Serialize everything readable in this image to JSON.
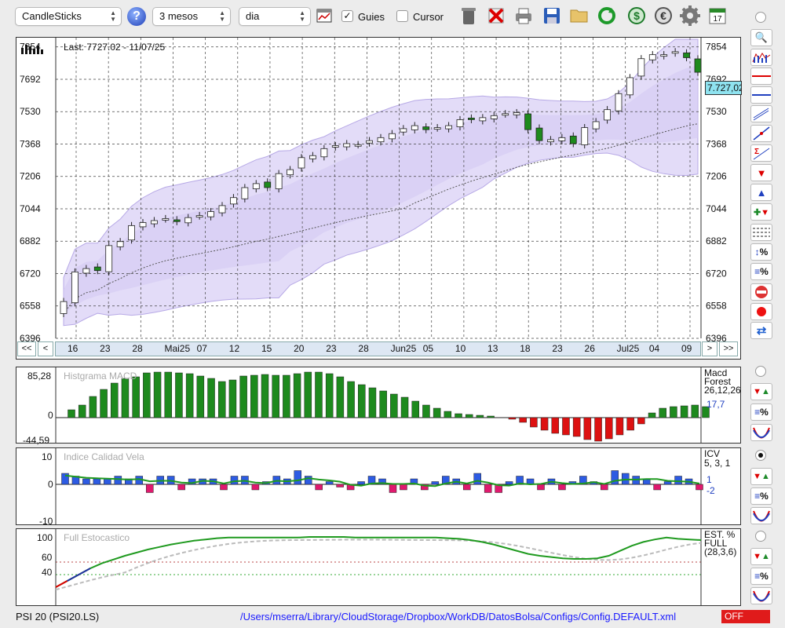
{
  "toolbar": {
    "chart_type": "CandleSticks",
    "period": "3 mesos",
    "interval": "dia",
    "guies_label": "Guies",
    "guies_checked": true,
    "cursor_label": "Cursor",
    "cursor_checked": false,
    "help_glyph": "?"
  },
  "main_chart": {
    "last_label": "Last: 7727.02 - 11/07/25",
    "current_value_badge": "7.727,02",
    "y_ticks": [
      "7854",
      "7692",
      "7530",
      "7368",
      "7206",
      "7044",
      "6882",
      "6720",
      "6558",
      "6396"
    ],
    "x_ticks": [
      "16",
      "23",
      "28",
      "Mai25",
      "07",
      "12",
      "15",
      "20",
      "23",
      "28",
      "Jun25",
      "05",
      "10",
      "13",
      "18",
      "23",
      "26",
      "Jul25",
      "04",
      "09"
    ],
    "nav_first": "<<",
    "nav_prev": "<",
    "nav_next": ">",
    "nav_last": ">>"
  },
  "macd": {
    "title": "Histgrama MACD",
    "y_top": "85,28",
    "y_zero": "0",
    "y_bottom": "-44,59",
    "label1": "Macd",
    "label2": "Forest",
    "params": "26,12,26",
    "value": "17,7",
    "color_pos": "#1e8a1e",
    "color_neg": "#dd1111"
  },
  "icv": {
    "title": "Indice Calidad Vela",
    "y_top": "10",
    "y_zero": "0",
    "y_bottom": "-10",
    "label": "ICV",
    "params": "5, 3, 1",
    "value1": "1",
    "value2": "-2"
  },
  "stoch": {
    "title": "Full Estocastico",
    "y_100": "100",
    "y_60": "60",
    "y_40": "40",
    "label1": "EST. %",
    "label2": "FULL",
    "params": "(28,3,6)"
  },
  "status": {
    "symbol": "PSI 20 (PSI20.LS)",
    "path": "/Users/mserra/Library/CloudStorage/Dropbox/WorkDB/DatosBolsa/Configs/Config.DEFAULT.xml",
    "off_label": "OFF"
  },
  "chart_data": {
    "type": "candlestick",
    "ylim": [
      6396,
      7900
    ],
    "candles_close": [
      6580,
      6728,
      6745,
      6735,
      6860,
      6880,
      6960,
      6975,
      6985,
      6995,
      6980,
      7000,
      7010,
      7030,
      7060,
      7100,
      7150,
      7170,
      7150,
      7220,
      7240,
      7300,
      7310,
      7345,
      7360,
      7370,
      7365,
      7385,
      7400,
      7420,
      7445,
      7460,
      7440,
      7450,
      7460,
      7490,
      7490,
      7500,
      7510,
      7520,
      7525,
      7440,
      7385,
      7390,
      7400,
      7370,
      7450,
      7480,
      7540,
      7620,
      7700,
      7795,
      7815,
      7815,
      7830,
      7800,
      7727
    ]
  }
}
